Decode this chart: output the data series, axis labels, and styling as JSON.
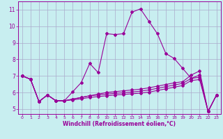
{
  "xlabel": "Windchill (Refroidissement éolien,°C)",
  "background_color": "#c8eef0",
  "line_color": "#990099",
  "grid_color": "#aaaacc",
  "xlim": [
    -0.5,
    23.5
  ],
  "ylim": [
    4.7,
    11.5
  ],
  "xticks": [
    0,
    1,
    2,
    3,
    4,
    5,
    6,
    7,
    8,
    9,
    10,
    11,
    12,
    13,
    14,
    15,
    16,
    17,
    18,
    19,
    20,
    21,
    22,
    23
  ],
  "yticks": [
    5,
    6,
    7,
    8,
    9,
    10,
    11
  ],
  "line1_x": [
    0,
    1,
    2,
    3,
    4,
    5,
    6,
    7,
    8,
    9,
    10,
    11,
    12,
    13,
    14,
    15,
    16,
    17,
    18,
    19,
    20,
    21,
    22,
    23
  ],
  "line1_y": [
    7.0,
    6.8,
    5.45,
    5.85,
    5.5,
    5.5,
    6.05,
    6.6,
    7.75,
    7.2,
    9.55,
    9.5,
    9.55,
    10.85,
    11.05,
    10.3,
    9.55,
    8.35,
    8.05,
    7.45,
    6.85,
    7.05,
    4.85,
    5.85
  ],
  "line2_x": [
    0,
    1,
    2,
    3,
    4,
    5,
    6,
    7,
    8,
    9,
    10,
    11,
    12,
    13,
    14,
    15,
    16,
    17,
    18,
    19,
    20,
    21,
    22,
    23
  ],
  "line2_y": [
    7.0,
    6.8,
    5.45,
    5.85,
    5.5,
    5.5,
    5.6,
    5.7,
    5.8,
    5.9,
    6.0,
    6.05,
    6.1,
    6.15,
    6.2,
    6.28,
    6.38,
    6.48,
    6.58,
    6.65,
    7.05,
    7.3,
    4.85,
    5.85
  ],
  "line3_x": [
    0,
    1,
    2,
    3,
    4,
    5,
    6,
    7,
    8,
    9,
    10,
    11,
    12,
    13,
    14,
    15,
    16,
    17,
    18,
    19,
    20,
    21,
    22,
    23
  ],
  "line3_y": [
    7.0,
    6.8,
    5.45,
    5.85,
    5.5,
    5.5,
    5.6,
    5.7,
    5.8,
    5.85,
    5.9,
    5.95,
    5.98,
    6.03,
    6.08,
    6.15,
    6.25,
    6.35,
    6.45,
    6.55,
    6.85,
    6.92,
    4.85,
    5.85
  ],
  "line4_x": [
    0,
    1,
    2,
    3,
    4,
    5,
    6,
    7,
    8,
    9,
    10,
    11,
    12,
    13,
    14,
    15,
    16,
    17,
    18,
    19,
    20,
    21,
    22,
    23
  ],
  "line4_y": [
    7.0,
    6.8,
    5.45,
    5.85,
    5.5,
    5.5,
    5.55,
    5.62,
    5.7,
    5.75,
    5.8,
    5.85,
    5.88,
    5.92,
    5.96,
    6.02,
    6.12,
    6.22,
    6.32,
    6.42,
    6.72,
    6.78,
    4.85,
    5.85
  ]
}
